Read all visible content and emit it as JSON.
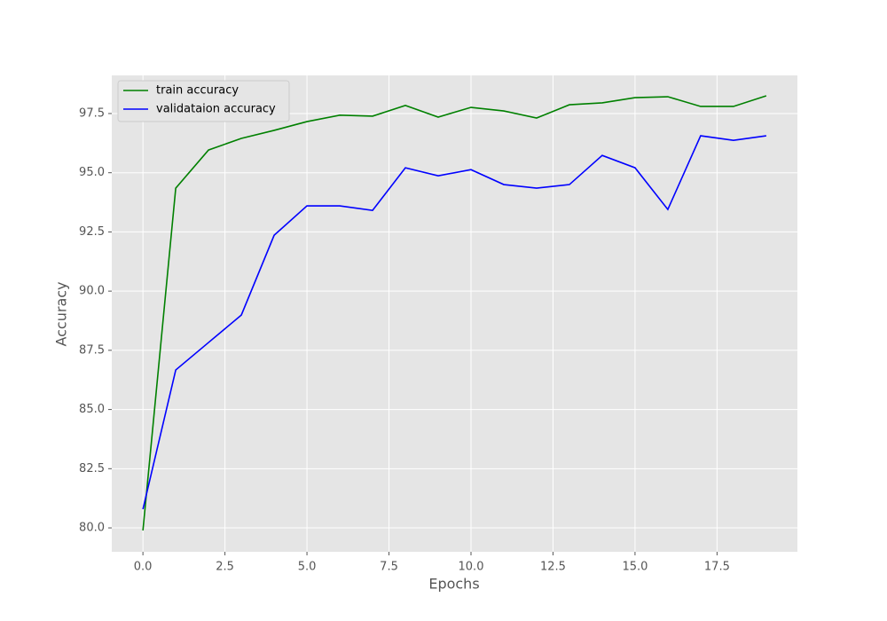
{
  "chart_data": {
    "type": "line",
    "xlabel": "Epochs",
    "ylabel": "Accuracy",
    "x": [
      0,
      1,
      2,
      3,
      4,
      5,
      6,
      7,
      8,
      9,
      10,
      11,
      12,
      13,
      14,
      15,
      16,
      17,
      18,
      19
    ],
    "series": [
      {
        "name": "train accuracy",
        "color": "#008000",
        "values": [
          79.89,
          94.35,
          95.96,
          96.45,
          96.79,
          97.16,
          97.43,
          97.39,
          97.84,
          97.35,
          97.76,
          97.61,
          97.31,
          97.87,
          97.95,
          98.17,
          98.21,
          97.8,
          97.8,
          98.25
        ]
      },
      {
        "name": "validataion accuracy",
        "color": "#0000ff",
        "values": [
          80.79,
          86.67,
          87.83,
          88.99,
          92.36,
          93.6,
          93.6,
          93.41,
          95.21,
          94.87,
          95.13,
          94.5,
          94.35,
          94.5,
          95.73,
          95.21,
          93.45,
          96.56,
          96.37,
          96.56
        ]
      }
    ],
    "xlim": [
      -0.95,
      19.95
    ],
    "xticks": [
      {
        "value": 0,
        "label": "0.0"
      },
      {
        "value": 2.5,
        "label": "2.5"
      },
      {
        "value": 5,
        "label": "5.0"
      },
      {
        "value": 7.5,
        "label": "7.5"
      },
      {
        "value": 10,
        "label": "10.0"
      },
      {
        "value": 12.5,
        "label": "12.5"
      },
      {
        "value": 15,
        "label": "15.0"
      },
      {
        "value": 17.5,
        "label": "17.5"
      }
    ],
    "ylim": [
      78.99,
      99.11
    ],
    "yticks": [
      {
        "value": 80,
        "label": "80.0"
      },
      {
        "value": 82.5,
        "label": "82.5"
      },
      {
        "value": 85,
        "label": "85.0"
      },
      {
        "value": 87.5,
        "label": "87.5"
      },
      {
        "value": 90,
        "label": "90.0"
      },
      {
        "value": 92.5,
        "label": "92.5"
      },
      {
        "value": 95,
        "label": "95.0"
      },
      {
        "value": 97.5,
        "label": "97.5"
      }
    ],
    "grid": true,
    "legend": "upper left"
  }
}
